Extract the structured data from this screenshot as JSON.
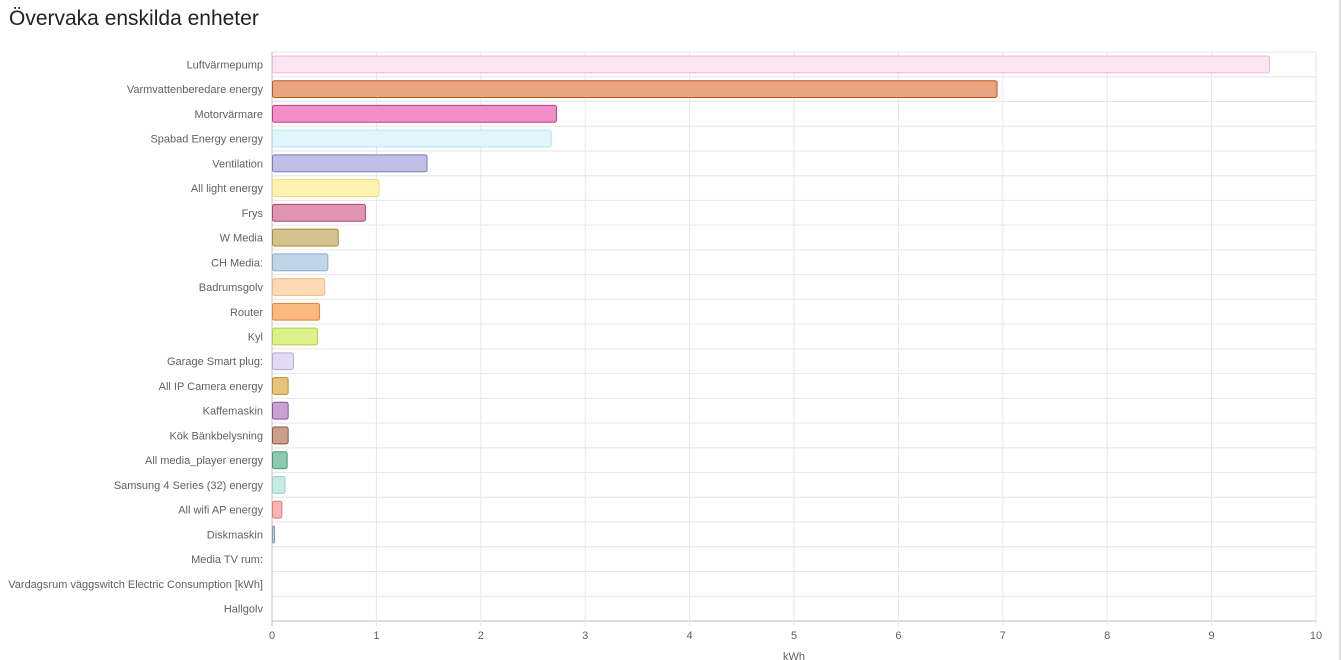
{
  "card": {
    "title": "Övervaka enskilda enheter"
  },
  "chart_data": {
    "type": "bar",
    "orientation": "horizontal",
    "title": "Övervaka enskilda enheter",
    "xlabel": "kWh",
    "ylabel": "",
    "xlim": [
      0,
      10
    ],
    "x_ticks": [
      "0",
      "1",
      "2",
      "3",
      "4",
      "5",
      "6",
      "7",
      "8",
      "9",
      "10"
    ],
    "grid": true,
    "categories": [
      "Luftvärmepump",
      "Varmvattenberedare energy",
      "Motorvärmare",
      "Spabad Energy energy",
      "Ventilation",
      "All light energy",
      "Frys",
      "W Media",
      "CH Media:",
      "Badrumsgolv",
      "Router",
      "Kyl",
      "Garage Smart plug:",
      "All IP Camera energy",
      "Kaffemaskin",
      "Kök Bänkbelysning",
      "All media_player energy",
      "Samsung 4 Series (32) energy",
      "All wifi AP energy",
      "Diskmaskin",
      "Media TV rum:",
      "Vardagsrum väggswitch Electric Consumption [kWh]",
      "Hallgolv"
    ],
    "values": [
      9.55,
      6.94,
      2.72,
      2.67,
      1.48,
      1.02,
      0.89,
      0.63,
      0.53,
      0.5,
      0.45,
      0.43,
      0.2,
      0.15,
      0.15,
      0.15,
      0.14,
      0.12,
      0.09,
      0.02,
      0,
      0,
      0
    ],
    "fills": [
      "#fce4f1",
      "#e8a57f",
      "#f28fc8",
      "#e1f5fc",
      "#c0c0e6",
      "#fff3b3",
      "#e094b0",
      "#d4c38e",
      "#c0d6e8",
      "#fdd9b5",
      "#fbb97f",
      "#dcf18b",
      "#e2dcf2",
      "#e8c27f",
      "#c9a2d2",
      "#c99f8c",
      "#8ccbb0",
      "#c7ebe3",
      "#f7b5b5",
      "#c0c8dc",
      "#e0e0e0",
      "#e0e0e0",
      "#e0e0e0"
    ],
    "strokes": [
      "#f4b6d8",
      "#c2561b",
      "#c43a8a",
      "#b5e4f5",
      "#7b7bbf",
      "#f3dc6c",
      "#a84a6e",
      "#a88c2e",
      "#86acd0",
      "#f6b57a",
      "#e9823a",
      "#aed43a",
      "#b4a9dc",
      "#c48a25",
      "#8c4f9e",
      "#8c5640",
      "#3f9a73",
      "#95d4c4",
      "#e27979",
      "#8898b8",
      "#cccccc",
      "#cccccc",
      "#cccccc"
    ]
  }
}
